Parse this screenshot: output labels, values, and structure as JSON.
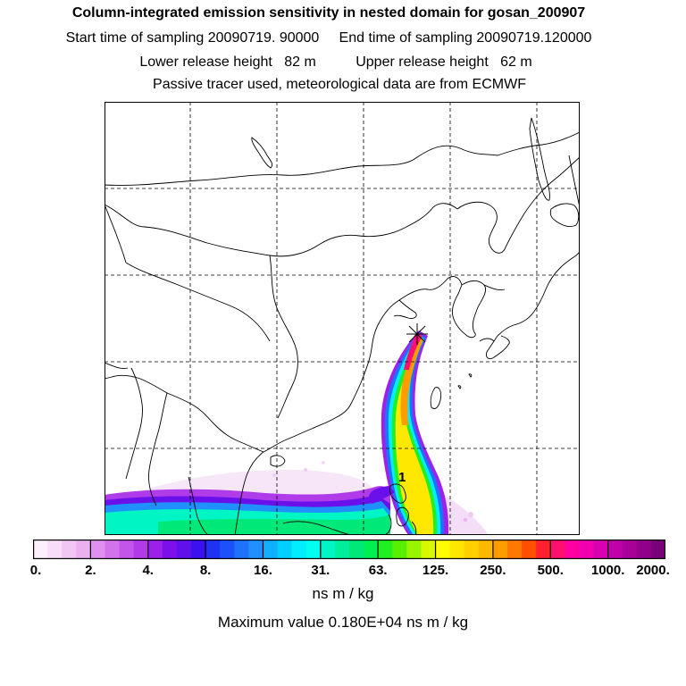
{
  "header": {
    "title": "Column-integrated emission sensitivity in nested domain for gosan_200907",
    "sampling_line": "Start time of sampling 20090719. 90000     End time of sampling 20090719.120000",
    "release_line": "Lower release height   82 m          Upper release height   62 m",
    "tracer_line": "Passive tracer used, meteorological data are from ECMWF"
  },
  "map": {
    "label_marker": "1",
    "release_marker_icon": "star-cross-icon",
    "gridlines": "dashed",
    "colors": {
      "frame": "#000000",
      "coast": "#000000"
    }
  },
  "colorbar": {
    "tick_labels": [
      "0.",
      "2.",
      "4.",
      "8.",
      "16.",
      "31.",
      "63.",
      "125.",
      "250.",
      "500.",
      "1000.",
      "2000."
    ],
    "colors": [
      "#fdf0fd",
      "#f8dcf8",
      "#f2c6f4",
      "#eab0f0",
      "#e090ee",
      "#d273ec",
      "#c355ea",
      "#b33ae8",
      "#9a20ea",
      "#7d10ea",
      "#6010ea",
      "#3c10f0",
      "#1f33f5",
      "#1c50f8",
      "#1f70fb",
      "#1f90fd",
      "#10b0fe",
      "#00cfff",
      "#00eeff",
      "#00ffee",
      "#00f5c5",
      "#00ef9c",
      "#00e878",
      "#00f050",
      "#20f020",
      "#58f000",
      "#98f400",
      "#d8f800",
      "#ffff00",
      "#ffe800",
      "#ffd000",
      "#ffb800",
      "#ff9c00",
      "#ff7800",
      "#ff5000",
      "#ff2030",
      "#ff1070",
      "#ff00a0",
      "#f000b0",
      "#d800b0",
      "#c000a8",
      "#a80098",
      "#90008a",
      "#780078"
    ]
  },
  "footer": {
    "units": "ns m / kg",
    "max_value": "Maximum value  0.180E+04 ns m / kg"
  }
}
